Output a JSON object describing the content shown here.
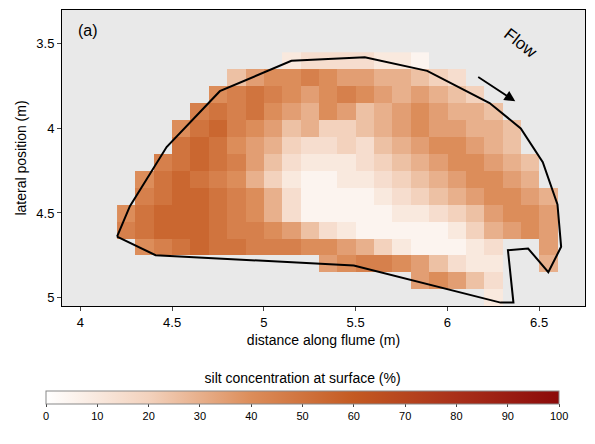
{
  "chart_data": {
    "type": "heatmap",
    "x_label": "distance along flume (m)",
    "y_label": "lateral position (m)",
    "xlim": [
      3.9,
      6.75
    ],
    "xticks": [
      4,
      4.5,
      5,
      5.5,
      6,
      6.5
    ],
    "ylim": [
      5.05,
      3.3
    ],
    "yticks": [
      3.5,
      4,
      4.5,
      5
    ],
    "grid": false,
    "annotations": [
      {
        "text": "(a)",
        "x": 4.04,
        "y": 3.42
      },
      {
        "text": "Flow",
        "x": 6.4,
        "y": 3.5
      }
    ],
    "colorbar": {
      "title": "silt concentration at surface (%)",
      "range": [
        0,
        100
      ],
      "ticks": [
        0,
        10,
        20,
        30,
        40,
        50,
        60,
        70,
        80,
        90,
        100
      ]
    },
    "outline": {
      "x": [
        4.2,
        4.41,
        5.49,
        5.86,
        6.29,
        6.36,
        6.33,
        6.44,
        6.55,
        6.62,
        6.6,
        6.52,
        6.4,
        6.23,
        5.89,
        5.55,
        5.15,
        4.76,
        4.47,
        4.27,
        4.2
      ],
      "y": [
        4.64,
        4.75,
        4.81,
        4.91,
        5.03,
        5.03,
        4.72,
        4.71,
        4.85,
        4.7,
        4.45,
        4.2,
        4.0,
        3.85,
        3.66,
        3.58,
        3.6,
        3.78,
        4.11,
        4.46,
        4.64
      ]
    },
    "x": [
      4.25,
      4.35,
      4.45,
      4.55,
      4.65,
      4.75,
      4.85,
      4.95,
      5.05,
      5.15,
      5.25,
      5.35,
      5.45,
      5.55,
      5.65,
      5.75,
      5.85,
      5.95,
      6.05,
      6.15,
      6.25,
      6.35,
      6.45,
      6.55,
      6.65
    ],
    "y": [
      3.6,
      3.7,
      3.8,
      3.9,
      4.0,
      4.1,
      4.2,
      4.3,
      4.4,
      4.5,
      4.6,
      4.7,
      4.8,
      4.9,
      5.0
    ],
    "z": [
      [
        null,
        null,
        null,
        null,
        null,
        null,
        null,
        null,
        null,
        10,
        15,
        15,
        15,
        15,
        10,
        10,
        5,
        null,
        null,
        null,
        null,
        null,
        null,
        null,
        null
      ],
      [
        null,
        null,
        null,
        null,
        null,
        null,
        25,
        35,
        40,
        40,
        45,
        40,
        35,
        35,
        30,
        30,
        25,
        20,
        15,
        null,
        null,
        null,
        null,
        null,
        null
      ],
      [
        null,
        null,
        null,
        null,
        null,
        40,
        45,
        50,
        45,
        40,
        35,
        40,
        45,
        40,
        35,
        30,
        35,
        30,
        25,
        20,
        null,
        null,
        null,
        null,
        null
      ],
      [
        null,
        null,
        null,
        null,
        45,
        50,
        45,
        50,
        40,
        35,
        30,
        40,
        35,
        25,
        30,
        35,
        40,
        35,
        30,
        30,
        25,
        null,
        null,
        null,
        null
      ],
      [
        null,
        null,
        null,
        40,
        50,
        55,
        45,
        40,
        35,
        25,
        30,
        20,
        20,
        25,
        30,
        35,
        40,
        35,
        35,
        30,
        30,
        25,
        null,
        null,
        null
      ],
      [
        null,
        null,
        null,
        50,
        55,
        50,
        40,
        35,
        30,
        20,
        15,
        15,
        20,
        15,
        25,
        30,
        35,
        40,
        40,
        35,
        30,
        25,
        null,
        null,
        null
      ],
      [
        null,
        null,
        45,
        50,
        55,
        50,
        45,
        35,
        25,
        15,
        10,
        10,
        10,
        15,
        20,
        25,
        30,
        35,
        40,
        40,
        35,
        30,
        25,
        null,
        null
      ],
      [
        null,
        40,
        50,
        55,
        50,
        45,
        40,
        30,
        20,
        10,
        5,
        5,
        10,
        10,
        15,
        20,
        25,
        30,
        35,
        40,
        40,
        35,
        30,
        null,
        null
      ],
      [
        null,
        45,
        50,
        55,
        55,
        50,
        45,
        40,
        30,
        15,
        5,
        5,
        5,
        5,
        10,
        15,
        20,
        25,
        30,
        35,
        40,
        40,
        35,
        30,
        null
      ],
      [
        40,
        50,
        55,
        55,
        55,
        50,
        45,
        40,
        30,
        15,
        5,
        5,
        5,
        5,
        5,
        10,
        10,
        15,
        20,
        25,
        35,
        40,
        40,
        35,
        null
      ],
      [
        45,
        50,
        55,
        55,
        55,
        50,
        45,
        45,
        40,
        35,
        25,
        15,
        10,
        5,
        5,
        5,
        5,
        5,
        10,
        20,
        30,
        35,
        40,
        35,
        null
      ],
      [
        null,
        40,
        45,
        50,
        55,
        50,
        50,
        45,
        45,
        45,
        40,
        40,
        35,
        30,
        20,
        10,
        5,
        5,
        5,
        10,
        15,
        null,
        null,
        35,
        null
      ],
      [
        null,
        null,
        null,
        null,
        null,
        null,
        null,
        null,
        null,
        null,
        null,
        35,
        40,
        45,
        45,
        40,
        35,
        25,
        15,
        10,
        10,
        null,
        null,
        30,
        null
      ],
      [
        null,
        null,
        null,
        null,
        null,
        null,
        null,
        null,
        null,
        null,
        null,
        null,
        null,
        null,
        null,
        null,
        35,
        40,
        35,
        25,
        15,
        null,
        null,
        null,
        null
      ],
      [
        null,
        null,
        null,
        null,
        null,
        null,
        null,
        null,
        null,
        null,
        null,
        null,
        null,
        null,
        null,
        null,
        null,
        null,
        null,
        null,
        10,
        null,
        null,
        null,
        null
      ]
    ]
  }
}
